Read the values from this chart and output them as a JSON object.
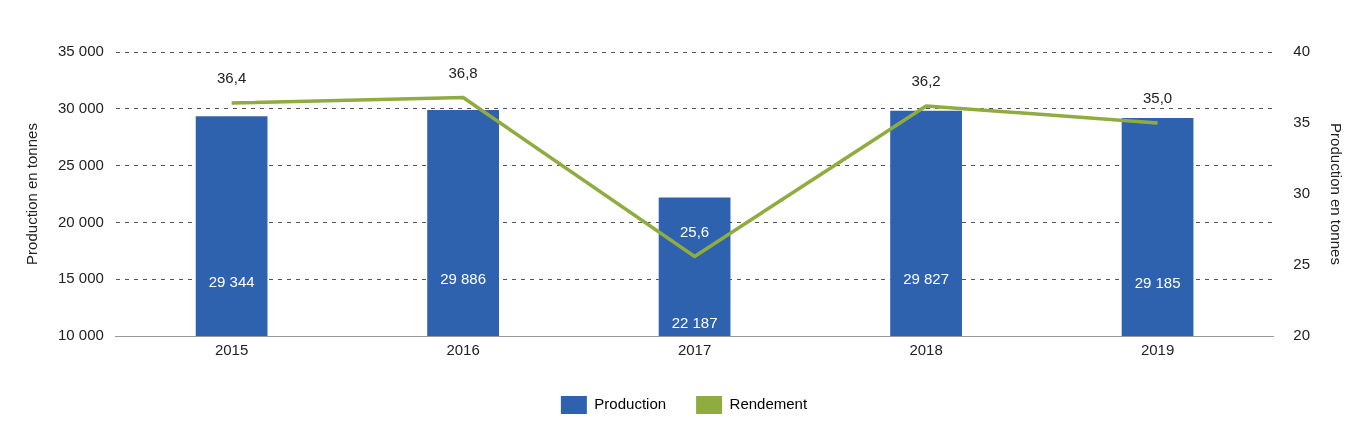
{
  "chart_data": {
    "type": "bar",
    "categories": [
      "2015",
      "2016",
      "2017",
      "2018",
      "2019"
    ],
    "ylabel": "Production en tonnes",
    "y2label": "Production en tonnes",
    "ylim": [
      10000,
      35000
    ],
    "yticks": [
      {
        "value": 10000,
        "label": "10 000"
      },
      {
        "value": 15000,
        "label": "15 000"
      },
      {
        "value": 20000,
        "label": "20 000"
      },
      {
        "value": 25000,
        "label": "25 000"
      },
      {
        "value": 30000,
        "label": "30 000"
      },
      {
        "value": 35000,
        "label": "35 000"
      }
    ],
    "y2lim": [
      20,
      40
    ],
    "y2ticks": [
      20,
      25,
      30,
      35,
      40
    ],
    "series": [
      {
        "name": "Production",
        "color": "#2e62ae",
        "values": [
          29344,
          29886,
          22187,
          29827,
          29185
        ],
        "value_labels": [
          "29 344",
          "29 886",
          "22 187",
          "29 827",
          "29 185"
        ]
      },
      {
        "name": "Rendement",
        "type": "line",
        "axis": "y2",
        "color": "#8fac3e",
        "values": [
          36.4,
          36.8,
          25.6,
          36.2,
          35.0
        ],
        "value_labels": [
          "36,4",
          "36,8",
          "25,6",
          "36,2",
          "35,0"
        ]
      }
    ],
    "grid": "y",
    "legend": "bottom",
    "marker": "none"
  }
}
